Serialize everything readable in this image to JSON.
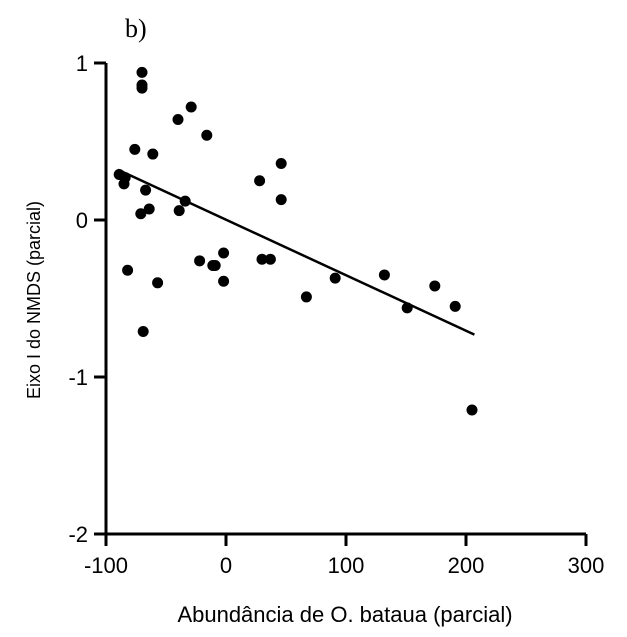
{
  "chart_data": {
    "type": "scatter",
    "panel_label": "b)",
    "title": "",
    "xlabel": "Abundância de O. bataua (parcial)",
    "ylabel": "Eixo I do NMDS (parcial)",
    "xlim": [
      -100,
      300
    ],
    "ylim": [
      -2,
      1
    ],
    "x_ticks": [
      -100,
      0,
      100,
      200,
      300
    ],
    "y_ticks": [
      -2,
      -1,
      0,
      1
    ],
    "x_tick_labels": [
      "-100",
      "0",
      "100",
      "200",
      "300"
    ],
    "y_tick_labels": [
      "-2",
      "-1",
      "0",
      "1"
    ],
    "grid": false,
    "points": [
      {
        "x": -70,
        "y": 0.94
      },
      {
        "x": -70,
        "y": 0.86
      },
      {
        "x": -70,
        "y": 0.84
      },
      {
        "x": -29,
        "y": 0.72
      },
      {
        "x": -40,
        "y": 0.64
      },
      {
        "x": -16,
        "y": 0.54
      },
      {
        "x": -76,
        "y": 0.45
      },
      {
        "x": -61,
        "y": 0.42
      },
      {
        "x": 46,
        "y": 0.36
      },
      {
        "x": -89,
        "y": 0.29
      },
      {
        "x": -84,
        "y": 0.27
      },
      {
        "x": 28,
        "y": 0.25
      },
      {
        "x": -85,
        "y": 0.23
      },
      {
        "x": -67,
        "y": 0.19
      },
      {
        "x": 46,
        "y": 0.13
      },
      {
        "x": -34,
        "y": 0.12
      },
      {
        "x": -64,
        "y": 0.07
      },
      {
        "x": -39,
        "y": 0.06
      },
      {
        "x": -71,
        "y": 0.04
      },
      {
        "x": -2,
        "y": -0.21
      },
      {
        "x": -22,
        "y": -0.26
      },
      {
        "x": 30,
        "y": -0.25
      },
      {
        "x": 37,
        "y": -0.25
      },
      {
        "x": -11,
        "y": -0.29
      },
      {
        "x": -9,
        "y": -0.29
      },
      {
        "x": -82,
        "y": -0.32
      },
      {
        "x": 132,
        "y": -0.35
      },
      {
        "x": 91,
        "y": -0.37
      },
      {
        "x": -2,
        "y": -0.39
      },
      {
        "x": -57,
        "y": -0.4
      },
      {
        "x": 174,
        "y": -0.42
      },
      {
        "x": 67,
        "y": -0.49
      },
      {
        "x": 191,
        "y": -0.55
      },
      {
        "x": 151,
        "y": -0.56
      },
      {
        "x": -69,
        "y": -0.71
      },
      {
        "x": 205,
        "y": -1.21
      }
    ],
    "fit_line": {
      "x": [
        -90,
        207
      ],
      "y": [
        0.32,
        -0.73
      ]
    }
  }
}
